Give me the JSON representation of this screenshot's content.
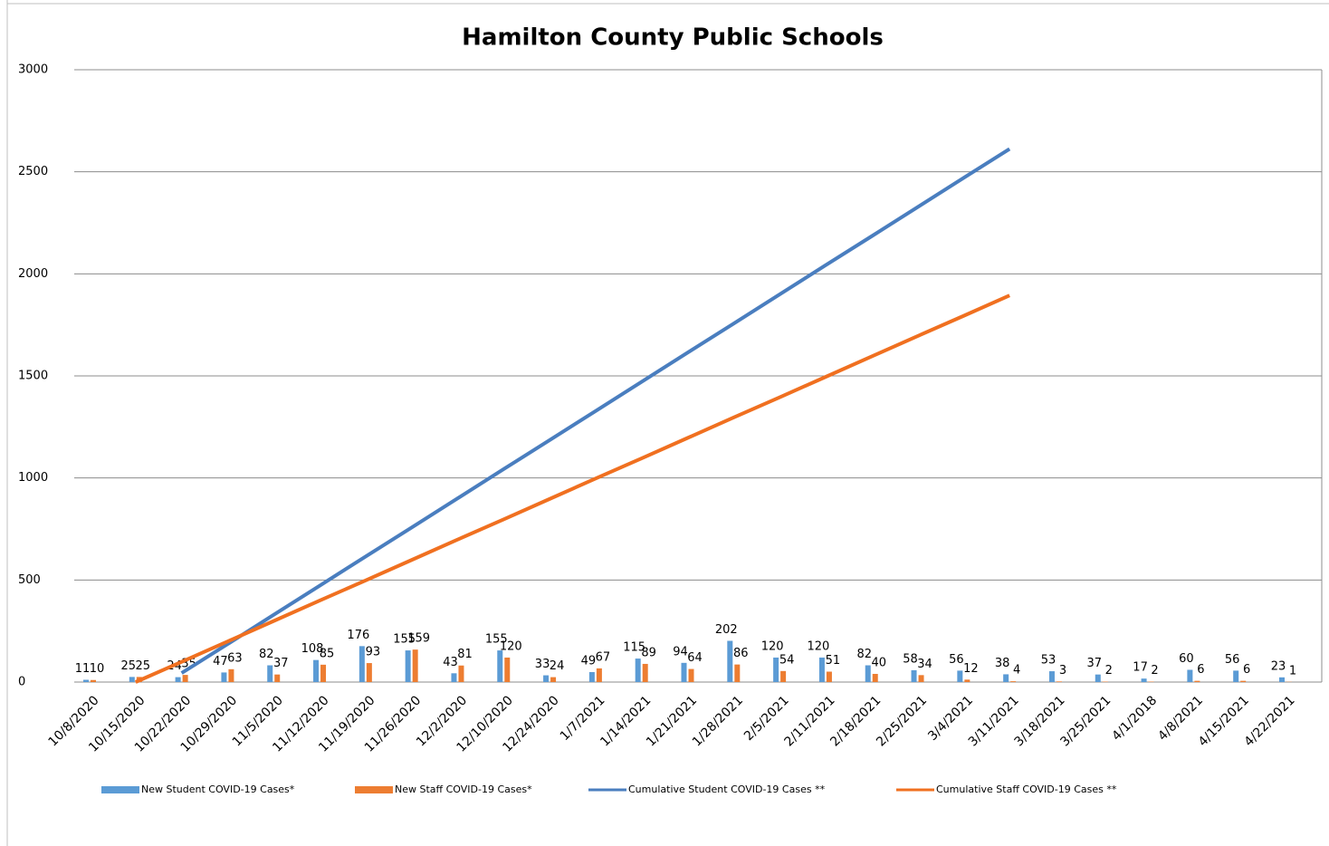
{
  "chart_data": {
    "type": "bar",
    "title": "Hamilton County Public Schools",
    "categories": [
      "10/8/2020",
      "10/15/2020",
      "10/22/2020",
      "10/29/2020",
      "11/5/2020",
      "11/12/2020",
      "11/19/2020",
      "11/26/2020",
      "12/2/2020",
      "12/10/2020",
      "12/24/2020",
      "1/7/2021",
      "1/14/2021",
      "1/21/2021",
      "1/28/2021",
      "2/5/2021",
      "2/11/2021",
      "2/18/2021",
      "2/25/2021",
      "3/4/2021",
      "3/11/2021",
      "3/18/2021",
      "3/25/2021",
      "4/1/2018",
      "4/8/2021",
      "4/15/2021",
      "4/22/2021"
    ],
    "series": [
      {
        "name": "New Student COVID-19 Cases*",
        "type": "bar",
        "color": "#5b9bd5",
        "values": [
          11,
          25,
          24,
          47,
          82,
          108,
          176,
          155,
          43,
          155,
          33,
          49,
          115,
          94,
          202,
          120,
          120,
          82,
          58,
          56,
          38,
          53,
          37,
          17,
          60,
          56,
          23
        ]
      },
      {
        "name": "New Staff COVID-19 Cases*",
        "type": "bar",
        "color": "#ed7d31",
        "values": [
          10,
          25,
          35,
          63,
          37,
          85,
          93,
          159,
          81,
          120,
          24,
          67,
          89,
          64,
          86,
          54,
          51,
          40,
          34,
          12,
          4,
          3,
          2,
          2,
          6,
          6,
          1
        ]
      },
      {
        "name": "Cumulative Student COVID-19 Cases **",
        "type": "line",
        "color": "#4a7ebf",
        "values": [
          null,
          null,
          44,
          186,
          329,
          472,
          615,
          757,
          900,
          1043,
          1185,
          1328,
          1471,
          1614,
          1756,
          1899,
          2042,
          2184,
          2327,
          2470,
          2612,
          null,
          null,
          null,
          null,
          null,
          null
        ]
      },
      {
        "name": "Cumulative Staff COVID-19 Cases **",
        "type": "line",
        "color": "#f07020",
        "values": [
          null,
          0,
          99,
          199,
          299,
          399,
          498,
          598,
          698,
          797,
          897,
          997,
          1096,
          1196,
          1296,
          1395,
          1495,
          1595,
          1695,
          1794,
          1894,
          null,
          null,
          null,
          null,
          null,
          null
        ]
      }
    ],
    "ylim": [
      0,
      3000
    ],
    "yticks": [
      0,
      500,
      1000,
      1500,
      2000,
      2500,
      3000
    ],
    "grid": true,
    "legend": "bottom"
  }
}
